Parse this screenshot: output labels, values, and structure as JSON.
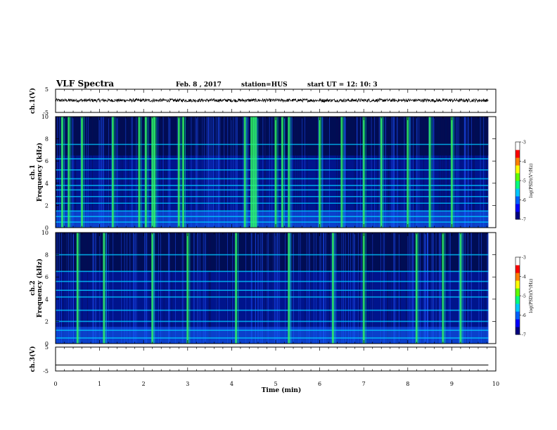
{
  "header": {
    "title": "VLF Spectra",
    "date": "Feb. 8 , 2017",
    "station": "station=HUS",
    "start": "start UT =  12: 10: 3"
  },
  "colorbar": {
    "label": "log(PSD)(V²/Hz)",
    "ticks": [
      "-3",
      "-4",
      "-5",
      "-6",
      "-7"
    ],
    "colors": [
      "#000080",
      "#0000ff",
      "#0060ff",
      "#00c8ff",
      "#00ff80",
      "#60ff00",
      "#ffff00",
      "#ff8000",
      "#ff0000",
      "#ffffff"
    ]
  },
  "chart_data": [
    {
      "type": "line",
      "name": "ch1-waveform",
      "ylabel": "ch.1(V)",
      "ylim": [
        -5,
        5
      ],
      "ytick_labels": [
        "5",
        "-5"
      ],
      "x_range": [
        0,
        9.83
      ],
      "note_level": 0.2
    },
    {
      "type": "heatmap",
      "name": "ch1-spectrogram",
      "ylabel_top": "ch.1",
      "ylabel": "Frequency (kHz)",
      "ylim": [
        0,
        10
      ],
      "ytick_labels": [
        "10",
        "8",
        "6",
        "4",
        "2",
        "0"
      ],
      "x_range": [
        0,
        9.83
      ],
      "bands_khz": [
        0.5,
        1.0,
        1.5,
        2.2,
        2.8,
        3.4,
        3.8,
        4.4,
        5.2,
        6.2,
        7.5
      ],
      "bursts_min": [
        0.15,
        0.3,
        0.6,
        1.3,
        1.9,
        2.05,
        2.2,
        2.25,
        2.8,
        2.9,
        4.3,
        4.45,
        4.5,
        4.55,
        5.0,
        5.15,
        5.3,
        6.0,
        6.5,
        7.0,
        7.4,
        8.0,
        8.5,
        9.0
      ]
    },
    {
      "type": "heatmap",
      "name": "ch2-spectrogram",
      "ylabel_top": "ch.2",
      "ylabel": "Frequency (kHz)",
      "ylim": [
        0,
        10
      ],
      "ytick_labels": [
        "10",
        "8",
        "6",
        "4",
        "2",
        "0"
      ],
      "x_range": [
        0,
        9.83
      ],
      "bands_khz": [
        0.5,
        1.2,
        2.0,
        3.0,
        4.2,
        4.8,
        5.6,
        6.5,
        8.0
      ],
      "bursts_min": [
        0.5,
        1.1,
        2.2,
        3.0,
        4.1,
        5.3,
        6.3,
        7.0,
        8.2,
        8.8,
        9.2
      ]
    },
    {
      "type": "line",
      "name": "ch3-waveform",
      "ylabel": "ch.3(V)",
      "ylim": [
        -5,
        5
      ],
      "ytick_labels": [
        "5",
        "-5"
      ],
      "x_range": [
        0,
        9.83
      ],
      "note_level": -2.5
    }
  ],
  "x_axis": {
    "label": "Time (min)",
    "ticks": [
      0,
      1,
      2,
      3,
      4,
      5,
      6,
      7,
      8,
      9,
      10
    ],
    "range": [
      0,
      10
    ]
  }
}
